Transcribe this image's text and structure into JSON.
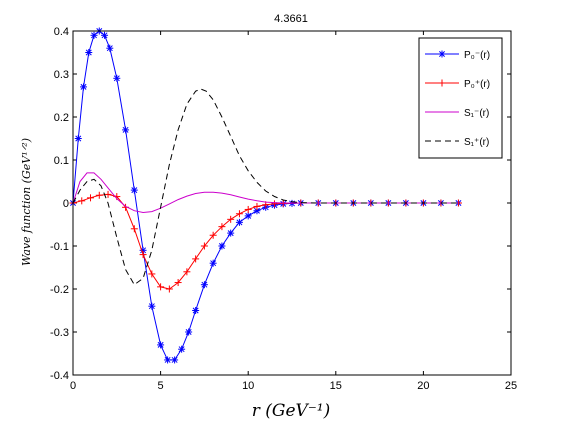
{
  "chart_data": {
    "type": "line",
    "title": "4.3661",
    "xlabel": "r     (GeV⁻¹)",
    "ylabel": "Wave  function     (GeV¹ᐟ²)",
    "xlim": [
      0,
      25
    ],
    "ylim": [
      -0.4,
      0.4
    ],
    "xticks": [
      0,
      5,
      10,
      15,
      20,
      25
    ],
    "yticks": [
      -0.4,
      -0.3,
      -0.2,
      -0.1,
      0,
      0.1,
      0.2,
      0.3,
      0.4
    ],
    "grid": false,
    "legend_position": "top-right",
    "series": [
      {
        "name": "P₀⁻(r)",
        "color": "#0000ff",
        "marker": "asterisk",
        "line": "solid",
        "x": [
          0,
          0.3,
          0.6,
          0.9,
          1.2,
          1.5,
          1.8,
          2.1,
          2.5,
          3.0,
          3.5,
          4.0,
          4.5,
          5.0,
          5.4,
          5.8,
          6.2,
          6.6,
          7.0,
          7.5,
          8.0,
          8.5,
          9.0,
          9.5,
          10.0,
          10.5,
          11.0,
          11.5,
          12.0,
          12.5,
          13.0,
          14.0,
          15.0,
          16.0,
          17.0,
          18.0,
          19.0,
          20.0,
          21.0,
          22.0
        ],
        "y": [
          0,
          0.15,
          0.27,
          0.35,
          0.39,
          0.4,
          0.39,
          0.36,
          0.29,
          0.17,
          0.03,
          -0.11,
          -0.24,
          -0.33,
          -0.365,
          -0.365,
          -0.34,
          -0.3,
          -0.25,
          -0.19,
          -0.14,
          -0.1,
          -0.07,
          -0.045,
          -0.03,
          -0.018,
          -0.01,
          -0.005,
          -0.002,
          -0.001,
          0,
          0,
          0,
          0,
          0,
          0,
          0,
          0,
          0,
          0
        ]
      },
      {
        "name": "P₀⁺(r)",
        "color": "#ff0000",
        "marker": "plus",
        "line": "solid",
        "x": [
          0,
          0.5,
          1.0,
          1.5,
          2.0,
          2.5,
          3.0,
          3.5,
          4.0,
          4.5,
          5.0,
          5.5,
          6.0,
          6.5,
          7.0,
          7.5,
          8.0,
          8.5,
          9.0,
          9.5,
          10.0,
          10.5,
          11.0,
          11.5,
          12.0,
          13.0,
          14.0,
          15.0,
          16.0,
          17.0,
          18.0,
          19.0,
          20.0,
          21.0,
          22.0
        ],
        "y": [
          0,
          0.005,
          0.012,
          0.018,
          0.02,
          0.015,
          -0.01,
          -0.06,
          -0.12,
          -0.165,
          -0.195,
          -0.2,
          -0.185,
          -0.16,
          -0.13,
          -0.1,
          -0.075,
          -0.055,
          -0.038,
          -0.025,
          -0.015,
          -0.008,
          -0.004,
          -0.002,
          -0.001,
          0,
          0,
          0,
          0,
          0,
          0,
          0,
          0,
          0,
          0
        ]
      },
      {
        "name": "S₁⁻(r)",
        "color": "#cc00cc",
        "marker": "none",
        "line": "solid",
        "x": [
          0,
          0.4,
          0.8,
          1.2,
          1.6,
          2.0,
          2.5,
          3.0,
          3.5,
          4.0,
          4.5,
          5.0,
          5.5,
          6.0,
          6.5,
          7.0,
          7.5,
          8.0,
          8.5,
          9.0,
          9.5,
          10.0,
          10.5,
          11.0,
          11.5,
          12.0,
          13.0,
          14.0,
          22.0
        ],
        "y": [
          0,
          0.05,
          0.07,
          0.07,
          0.055,
          0.035,
          0.01,
          -0.008,
          -0.018,
          -0.022,
          -0.02,
          -0.012,
          -0.002,
          0.008,
          0.016,
          0.022,
          0.025,
          0.025,
          0.023,
          0.019,
          0.014,
          0.009,
          0.005,
          0.002,
          0.001,
          0,
          0,
          0,
          0
        ]
      },
      {
        "name": "S₁⁺(r)",
        "color": "#000000",
        "marker": "none",
        "line": "dashed",
        "x": [
          0,
          0.4,
          0.8,
          1.2,
          1.6,
          2.0,
          2.5,
          3.0,
          3.5,
          4.0,
          4.5,
          5.0,
          5.5,
          6.0,
          6.5,
          7.0,
          7.3,
          7.6,
          8.0,
          8.5,
          9.0,
          9.5,
          10.0,
          10.5,
          11.0,
          11.5,
          12.0,
          12.5,
          13.0,
          14.0,
          22.0
        ],
        "y": [
          0,
          0.03,
          0.05,
          0.055,
          0.04,
          0.0,
          -0.08,
          -0.155,
          -0.19,
          -0.175,
          -0.11,
          -0.01,
          0.09,
          0.17,
          0.23,
          0.26,
          0.265,
          0.26,
          0.24,
          0.2,
          0.155,
          0.11,
          0.075,
          0.048,
          0.028,
          0.015,
          0.007,
          0.003,
          0.001,
          0,
          0
        ]
      }
    ]
  }
}
